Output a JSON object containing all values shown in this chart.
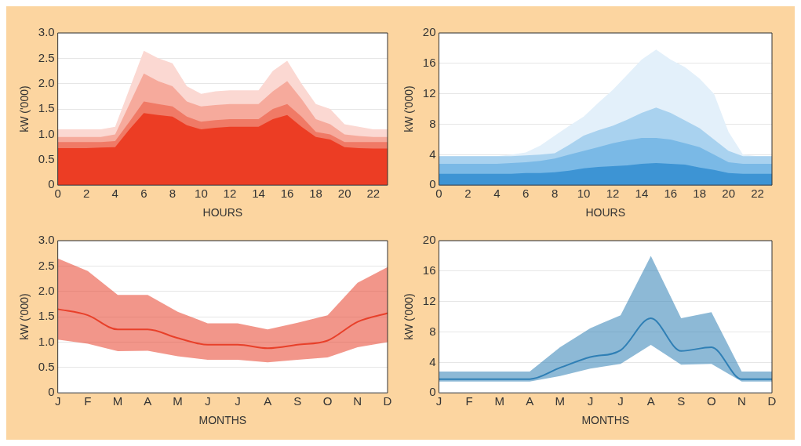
{
  "chart_data": [
    {
      "type": "area",
      "xlabel": "HOURS",
      "ylabel": "kW ('000)",
      "x": [
        0,
        1,
        2,
        3,
        4,
        5,
        6,
        7,
        8,
        9,
        10,
        11,
        12,
        13,
        14,
        15,
        16,
        17,
        18,
        19,
        20,
        21,
        22,
        23
      ],
      "xlim": [
        0,
        23
      ],
      "xticks": [
        0,
        2,
        4,
        6,
        8,
        10,
        12,
        14,
        16,
        18,
        20,
        22
      ],
      "ylim": [
        0,
        3
      ],
      "yticks": [
        0,
        {
          "value": 0.5,
          "label": "0.5"
        },
        {
          "value": 1,
          "label": "1.0"
        },
        {
          "value": 1.5,
          "label": "1.5"
        },
        {
          "value": 2,
          "label": "2.0"
        },
        {
          "value": 2.5,
          "label": "2.5"
        },
        {
          "value": 3,
          "label": "3.0"
        }
      ],
      "grid": "y",
      "legend": false,
      "series": [
        {
          "color": "#fbd8d2",
          "values": [
            1.1,
            1.1,
            1.1,
            1.1,
            1.15,
            1.9,
            2.65,
            2.5,
            2.4,
            1.95,
            1.8,
            1.85,
            1.87,
            1.87,
            1.87,
            2.25,
            2.45,
            2.0,
            1.6,
            1.5,
            1.2,
            1.15,
            1.1,
            1.1
          ]
        },
        {
          "color": "#f6aa9c",
          "values": [
            0.95,
            0.95,
            0.95,
            0.95,
            1.0,
            1.6,
            2.2,
            2.05,
            1.95,
            1.65,
            1.55,
            1.58,
            1.6,
            1.6,
            1.6,
            1.85,
            2.05,
            1.7,
            1.3,
            1.2,
            1.0,
            0.97,
            0.95,
            0.95
          ]
        },
        {
          "color": "#f07a66",
          "values": [
            0.85,
            0.85,
            0.85,
            0.85,
            0.87,
            1.25,
            1.65,
            1.6,
            1.55,
            1.35,
            1.25,
            1.28,
            1.3,
            1.3,
            1.3,
            1.5,
            1.6,
            1.35,
            1.05,
            1.0,
            0.85,
            0.85,
            0.85,
            0.85
          ]
        },
        {
          "color": "#ec3d24",
          "values": [
            0.73,
            0.73,
            0.73,
            0.74,
            0.75,
            1.1,
            1.42,
            1.38,
            1.35,
            1.18,
            1.1,
            1.13,
            1.15,
            1.15,
            1.15,
            1.3,
            1.38,
            1.15,
            0.95,
            0.9,
            0.75,
            0.73,
            0.72,
            0.72
          ]
        }
      ]
    },
    {
      "type": "area",
      "xlabel": "HOURS",
      "ylabel": "kW ('000)",
      "x": [
        0,
        1,
        2,
        3,
        4,
        5,
        6,
        7,
        8,
        9,
        10,
        11,
        12,
        13,
        14,
        15,
        16,
        17,
        18,
        19,
        20,
        21,
        22,
        23
      ],
      "xlim": [
        0,
        23
      ],
      "xticks": [
        0,
        2,
        4,
        6,
        8,
        10,
        12,
        14,
        16,
        18,
        20,
        22
      ],
      "ylim": [
        0,
        20
      ],
      "yticks": [
        0,
        4,
        8,
        12,
        16,
        20
      ],
      "grid": "y",
      "legend": false,
      "series": [
        {
          "color": "#e3f0fa",
          "values": [
            3.8,
            3.8,
            3.8,
            3.8,
            3.8,
            4.0,
            4.3,
            5.2,
            6.5,
            7.8,
            9,
            10.8,
            12.5,
            14.5,
            16.5,
            17.8,
            16.5,
            15.5,
            14,
            12,
            7,
            4,
            3.8,
            3.8
          ]
        },
        {
          "color": "#a9d2ef",
          "values": [
            3.8,
            3.8,
            3.8,
            3.8,
            3.8,
            3.8,
            3.9,
            4.0,
            4.2,
            5.3,
            6.5,
            7.2,
            7.8,
            8.6,
            9.5,
            10.2,
            9.5,
            8.5,
            7.5,
            6.0,
            4.5,
            3.8,
            3.8,
            3.8
          ]
        },
        {
          "color": "#7ab9e6",
          "values": [
            2.8,
            2.8,
            2.8,
            2.8,
            2.8,
            2.9,
            3.0,
            3.2,
            3.5,
            4.0,
            4.5,
            5.0,
            5.5,
            5.9,
            6.2,
            6.2,
            6.0,
            5.5,
            5.0,
            4.0,
            3.0,
            2.8,
            2.8,
            2.8
          ]
        },
        {
          "color": "#3d94d4",
          "values": [
            1.5,
            1.5,
            1.5,
            1.5,
            1.5,
            1.5,
            1.6,
            1.6,
            1.7,
            1.9,
            2.2,
            2.4,
            2.5,
            2.6,
            2.8,
            2.9,
            2.8,
            2.7,
            2.3,
            2.0,
            1.6,
            1.5,
            1.5,
            1.5
          ]
        }
      ]
    },
    {
      "type": "line",
      "xlabel": "MONTHS",
      "ylabel": "kW ('000)",
      "categories": [
        "J",
        "F",
        "M",
        "A",
        "M",
        "J",
        "J",
        "A",
        "S",
        "O",
        "N",
        "D"
      ],
      "ylim": [
        0,
        3
      ],
      "yticks": [
        0,
        {
          "value": 0.5,
          "label": "0.5"
        },
        {
          "value": 1,
          "label": "1.0"
        },
        {
          "value": 1.5,
          "label": "1.5"
        },
        {
          "value": 2,
          "label": "2.0"
        },
        {
          "value": 2.5,
          "label": "2.5"
        },
        {
          "value": 3,
          "label": "3.0"
        }
      ],
      "grid": "y",
      "legend": false,
      "marker": "none",
      "series": [
        {
          "color": "#e8402a",
          "values": [
            1.65,
            1.53,
            1.25,
            1.25,
            1.08,
            0.95,
            0.95,
            0.88,
            0.95,
            1.03,
            1.4,
            1.57
          ],
          "lower": [
            1.05,
            0.97,
            0.82,
            0.83,
            0.72,
            0.65,
            0.65,
            0.6,
            0.65,
            0.7,
            0.9,
            1.0
          ],
          "upper": [
            2.65,
            2.4,
            1.93,
            1.93,
            1.6,
            1.37,
            1.37,
            1.25,
            1.38,
            1.53,
            2.17,
            2.48
          ]
        }
      ]
    },
    {
      "type": "line",
      "xlabel": "MONTHS",
      "ylabel": "kW ('000)",
      "categories": [
        "J",
        "F",
        "M",
        "A",
        "M",
        "J",
        "J",
        "A",
        "S",
        "O",
        "N",
        "D"
      ],
      "ylim": [
        0,
        20
      ],
      "yticks": [
        0,
        4,
        8,
        12,
        16,
        20
      ],
      "grid": "y",
      "legend": false,
      "marker": "none",
      "series": [
        {
          "color": "#2f7fb5",
          "values": [
            1.8,
            1.8,
            1.8,
            1.8,
            3.3,
            4.7,
            5.6,
            9.8,
            5.5,
            6.0,
            1.8,
            1.8
          ],
          "lower": [
            1.5,
            1.5,
            1.5,
            1.5,
            2.2,
            3.2,
            3.8,
            6.3,
            3.7,
            3.8,
            1.5,
            1.5
          ],
          "upper": [
            2.8,
            2.8,
            2.8,
            2.8,
            6.0,
            8.5,
            10.2,
            18,
            9.8,
            10.6,
            2.8,
            2.8
          ]
        }
      ]
    }
  ]
}
